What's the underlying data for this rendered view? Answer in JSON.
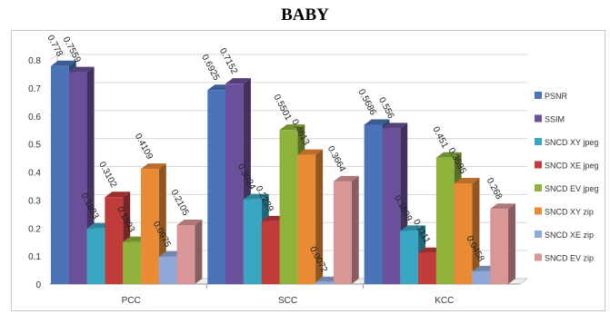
{
  "chart_data": {
    "type": "bar",
    "title": "BABY",
    "categories": [
      "PCC",
      "SCC",
      "KCC"
    ],
    "ylim": [
      0,
      0.8
    ],
    "yticks": [
      "0",
      "0.1",
      "0.2",
      "0.3",
      "0.4",
      "0.5",
      "0.6",
      "0.7",
      "0.8"
    ],
    "grid": true,
    "legend_position": "right",
    "series": [
      {
        "name": "PSNR",
        "color": "#4a73b8",
        "values": [
          0.778,
          0.6925,
          0.5686
        ],
        "labels": [
          "0.778",
          "0.6925",
          "0.5686"
        ]
      },
      {
        "name": "SSIM",
        "color": "#6a4f9a",
        "values": [
          0.7559,
          0.7152,
          0.556
        ],
        "labels": [
          "0.7559",
          "0.7152",
          "0.556"
        ]
      },
      {
        "name": "SNCD XY jpeg",
        "color": "#39a6c4",
        "values": [
          0.1983,
          0.3024,
          0.1899
        ],
        "labels": [
          "0.1983",
          "0.3024",
          "0.1899"
        ]
      },
      {
        "name": "SNCD XE jpeg",
        "color": "#c23b3b",
        "values": [
          0.3102,
          0.2239,
          0.1111
        ],
        "labels": [
          "0.3102",
          "0.2239",
          "0.1111"
        ]
      },
      {
        "name": "SNCD EV jpeg",
        "color": "#8fb33a",
        "values": [
          0.1503,
          0.5501,
          0.451
        ],
        "labels": [
          "0.1503",
          "0.5501",
          "0.451"
        ]
      },
      {
        "name": "SNCD XY zip",
        "color": "#ea8a34",
        "values": [
          0.4109,
          0.4613,
          0.3595
        ],
        "labels": [
          "0.4109",
          "0.4613",
          "0.3595"
        ]
      },
      {
        "name": "SNCD XE zip",
        "color": "#8fa8d8",
        "values": [
          0.0975,
          0.0072,
          0.0458
        ],
        "labels": [
          "0.0975",
          "0.0072",
          "0.0458"
        ]
      },
      {
        "name": "SNCD EV zip",
        "color": "#d99696",
        "values": [
          0.2105,
          0.3664,
          0.268
        ],
        "labels": [
          "0.2105",
          "0.3664",
          "0.268"
        ]
      }
    ]
  }
}
